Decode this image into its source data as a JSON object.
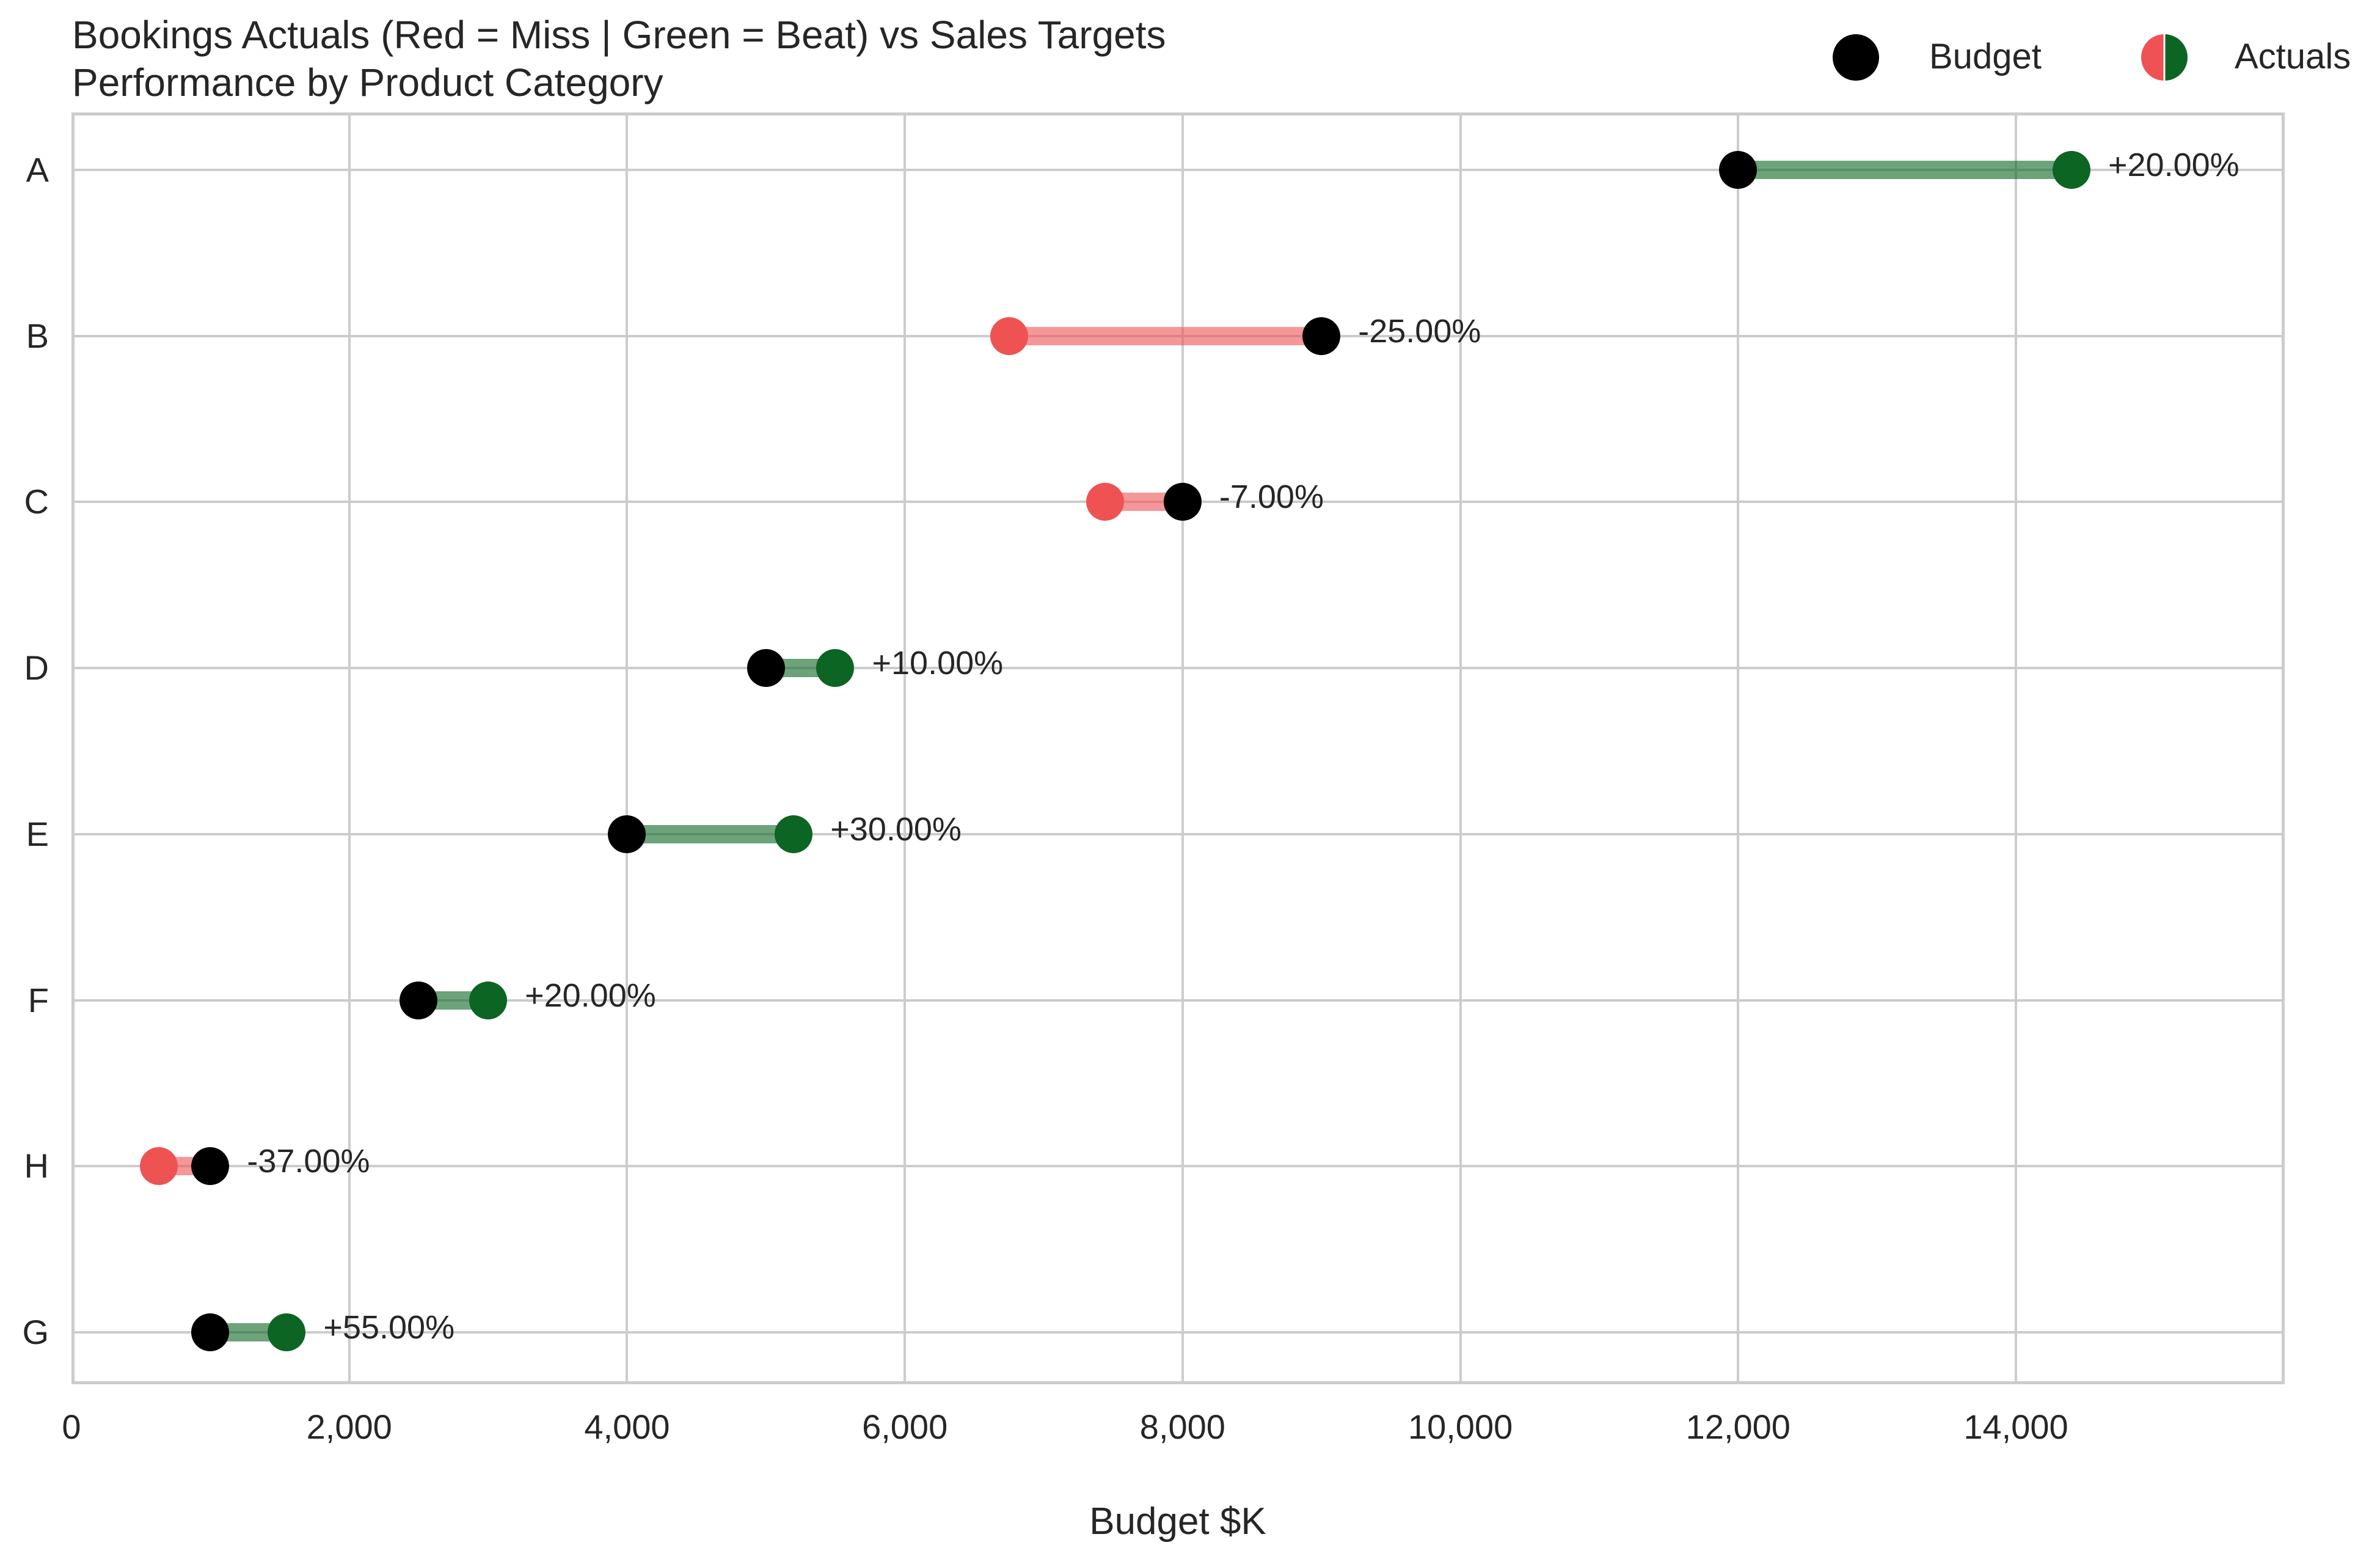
{
  "chart": {
    "title_line1": "Bookings Actuals (Red = Miss | Green = Beat) vs Sales Targets",
    "title_line2": "Performance by Product Category",
    "xlabel": "Budget $K",
    "legend": [
      {
        "label": "Budget",
        "icon": "black-circle"
      },
      {
        "label": "Actuals",
        "icon": "red-green-split-circle"
      }
    ],
    "xticks": [
      "0",
      "2,000",
      "4,000",
      "6,000",
      "8,000",
      "10,000",
      "12,000",
      "14,000"
    ],
    "colors": {
      "budget": "#000000",
      "beat": "#0c6523",
      "miss": "#ee5253",
      "grid": "#cccccc",
      "text": "#262626"
    }
  },
  "chart_data": {
    "type": "dumbbell",
    "title": "Bookings Actuals (Red = Miss | Green = Beat) vs Sales Targets\nPerformance by Product Category",
    "xlabel": "Budget $K",
    "ylabel": "",
    "xlim": [
      0,
      15935
    ],
    "x_ticks": [
      0,
      2000,
      4000,
      6000,
      8000,
      10000,
      12000,
      14000
    ],
    "grid": true,
    "legend_position": "upper right (outside, above plot)",
    "categories": [
      "A",
      "B",
      "C",
      "D",
      "E",
      "F",
      "H",
      "G"
    ],
    "series": [
      {
        "name": "Budget",
        "values": [
          12000,
          9000,
          8000,
          5000,
          4000,
          2500,
          1000,
          1000
        ]
      },
      {
        "name": "Actuals",
        "values": [
          14400,
          6750,
          7440,
          5500,
          5200,
          3000,
          630,
          1550
        ]
      }
    ],
    "annotations": [
      "+20.00%",
      "-25.00%",
      "-7.00%",
      "+10.00%",
      "+30.00%",
      "+20.00%",
      "-37.00%",
      "+55.00%"
    ],
    "status": [
      "beat",
      "miss",
      "miss",
      "beat",
      "beat",
      "beat",
      "miss",
      "beat"
    ]
  },
  "rows": [
    {
      "cat": "A",
      "budget": 12000,
      "actual": 14400,
      "pct": "+20.00%",
      "status": "beat"
    },
    {
      "cat": "B",
      "budget": 9000,
      "actual": 6750,
      "pct": "-25.00%",
      "status": "miss"
    },
    {
      "cat": "C",
      "budget": 8000,
      "actual": 7440,
      "pct": "-7.00%",
      "status": "miss"
    },
    {
      "cat": "D",
      "budget": 5000,
      "actual": 5500,
      "pct": "+10.00%",
      "status": "beat"
    },
    {
      "cat": "E",
      "budget": 4000,
      "actual": 5200,
      "pct": "+30.00%",
      "status": "beat"
    },
    {
      "cat": "F",
      "budget": 2500,
      "actual": 3000,
      "pct": "+20.00%",
      "status": "beat"
    },
    {
      "cat": "H",
      "budget": 1000,
      "actual": 630,
      "pct": "-37.00%",
      "status": "miss"
    },
    {
      "cat": "G",
      "budget": 1000,
      "actual": 1550,
      "pct": "+55.00%",
      "status": "beat"
    }
  ]
}
